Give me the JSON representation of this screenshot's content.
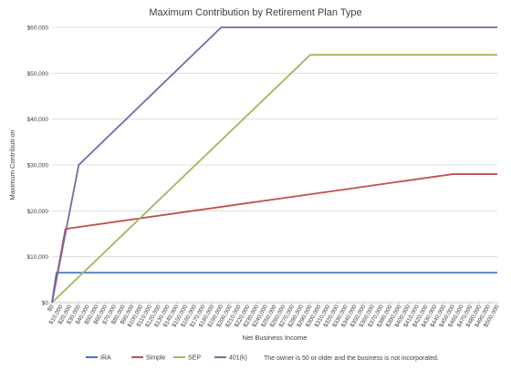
{
  "chart_data": {
    "type": "line",
    "title": "Maximum Contribution by Retirement Plan Type",
    "xlabel": "Net Business Income",
    "ylabel": "Maximum Contributi on",
    "ylim": [
      0,
      60000
    ],
    "yticks": [
      "$0",
      "$10,000",
      "$20,000",
      "$30,000",
      "$40,000",
      "$50,000",
      "$60,000"
    ],
    "ytick_values": [
      0,
      10000,
      20000,
      30000,
      40000,
      50000,
      60000
    ],
    "xlim": [
      0,
      500000
    ],
    "x_tick_step": 10000,
    "x_tick_labels": [
      "$0",
      "$10,000",
      "$20,000",
      "$30,000",
      "$40,000",
      "$50,000",
      "$60,000",
      "$70,000",
      "$80,000",
      "$90,000",
      "$100,000",
      "$110,000",
      "$120,000",
      "$130,000",
      "$140,000",
      "$150,000",
      "$160,000",
      "$170,000",
      "$180,000",
      "$190,000",
      "$200,000",
      "$210,000",
      "$220,000",
      "$230,000",
      "$240,000",
      "$250,000",
      "$260,000",
      "$270,000",
      "$280,000",
      "$290,000",
      "$300,000",
      "$310,000",
      "$320,000",
      "$330,000",
      "$340,000",
      "$350,000",
      "$360,000",
      "$370,000",
      "$380,000",
      "$390,000",
      "$400,000",
      "$410,000",
      "$420,000",
      "$430,000",
      "$440,000",
      "$450,000",
      "$460,000",
      "$470,000",
      "$480,000",
      "$490,000",
      "$500,000"
    ],
    "grid": true,
    "legend_position": "bottom",
    "note": "The owner is 50 or older and the business is not incorporated.",
    "series": [
      {
        "name": "IRA",
        "color": "#4472c4",
        "points": [
          [
            0,
            0
          ],
          [
            5000,
            6500
          ],
          [
            500000,
            6500
          ]
        ]
      },
      {
        "name": "Simple",
        "color": "#c0504d",
        "points": [
          [
            0,
            0
          ],
          [
            15000,
            16000
          ],
          [
            20000,
            16200
          ],
          [
            450000,
            28000
          ],
          [
            500000,
            28000
          ]
        ]
      },
      {
        "name": "SEP",
        "color": "#9bbb59",
        "points": [
          [
            0,
            0
          ],
          [
            290000,
            54000
          ],
          [
            500000,
            54000
          ]
        ]
      },
      {
        "name": "401(k)",
        "color": "#8064a2",
        "points": [
          [
            0,
            0
          ],
          [
            30000,
            30000
          ],
          [
            190000,
            60000
          ],
          [
            500000,
            60000
          ]
        ]
      }
    ]
  }
}
